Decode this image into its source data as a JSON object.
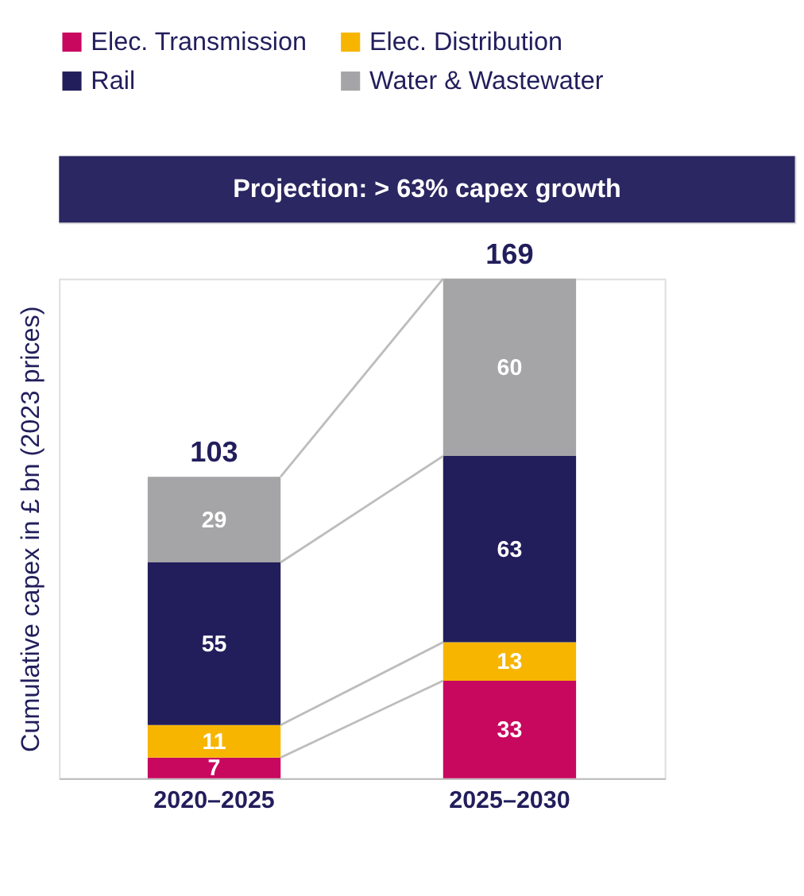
{
  "chart_data": {
    "type": "bar",
    "title": "Projection: > 63% capex growth",
    "ylabel": "Cumulative capex in £ bn (2023 prices)",
    "categories": [
      "2020–2025",
      "2025–2030"
    ],
    "series": [
      {
        "name": "Elec. Transmission",
        "color": "#c8075f",
        "values": [
          7,
          33
        ]
      },
      {
        "name": "Elec. Distribution",
        "color": "#f7b500",
        "values": [
          11,
          13
        ]
      },
      {
        "name": "Rail",
        "color": "#221e5c",
        "values": [
          55,
          63
        ]
      },
      {
        "name": "Water & Wastewater",
        "color": "#a5a5a7",
        "values": [
          29,
          60
        ]
      }
    ],
    "stacked": true,
    "data_labels": true,
    "totals": [
      "103",
      "169"
    ],
    "grid": false,
    "legend": "top left"
  }
}
